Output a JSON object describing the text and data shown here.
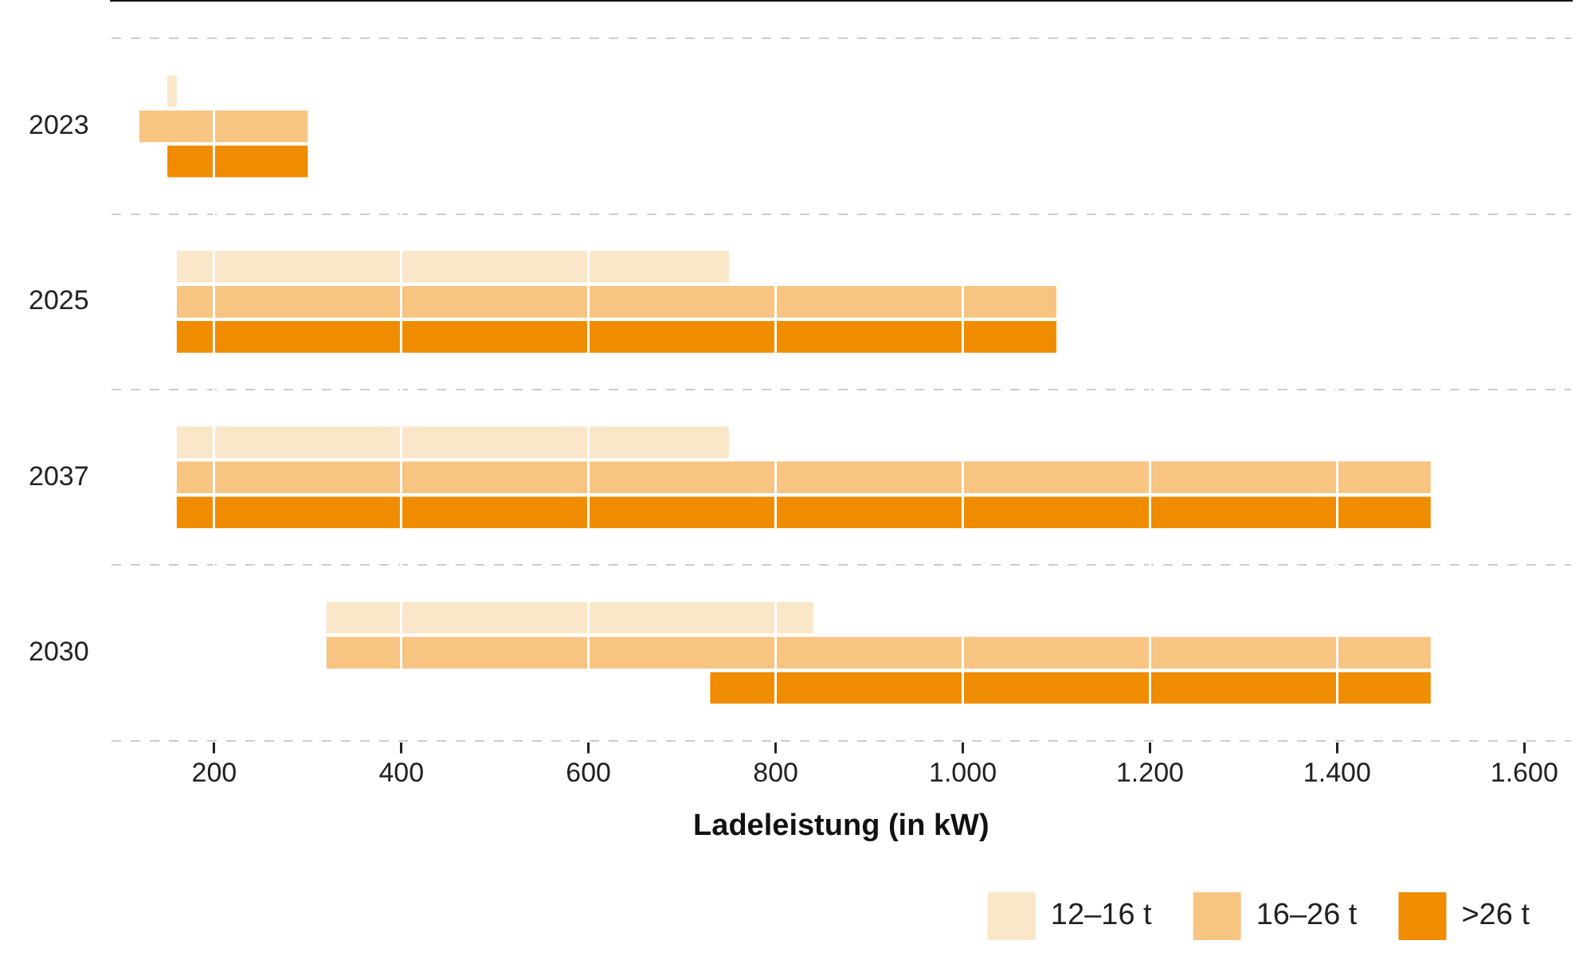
{
  "chart_data": {
    "type": "bar",
    "orientation": "horizontal",
    "xlabel": "Ladeleistung (in kW)",
    "categories": [
      "2023",
      "2025",
      "2037",
      "2030"
    ],
    "series": [
      {
        "name": "12–16 t",
        "color": "#fae6c8",
        "base": [
          150,
          160,
          160,
          320
        ],
        "values": [
          10,
          590,
          590,
          520
        ]
      },
      {
        "name": "16–26 t",
        "color": "#f7c482",
        "base": [
          120,
          160,
          160,
          320
        ],
        "values": [
          180,
          940,
          1340,
          1180
        ]
      },
      {
        "name": ">26 t",
        "color": "#f08c00",
        "base": [
          150,
          160,
          160,
          730
        ],
        "values": [
          150,
          940,
          1340,
          770
        ]
      }
    ],
    "xlim": [
      90,
      1650
    ],
    "xticks": [
      200,
      400,
      600,
      800,
      {
        "value": 1000,
        "label": "1.000"
      },
      {
        "value": 1200,
        "label": "1.200"
      },
      {
        "value": 1400,
        "label": "1.400"
      },
      {
        "value": 1600,
        "label": "1.600"
      }
    ],
    "grid": true,
    "legend": "bottom right"
  }
}
